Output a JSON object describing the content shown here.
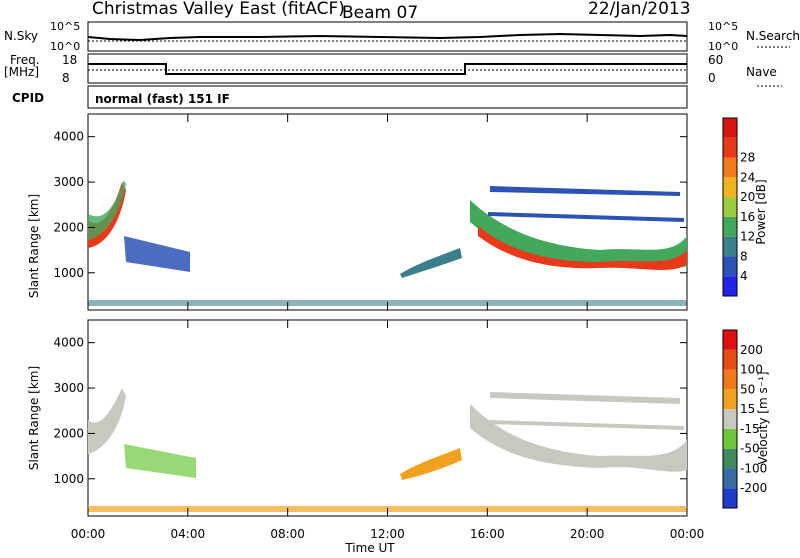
{
  "header": {
    "title": "Christmas Valley East (fitACF)",
    "beam": "Beam 07",
    "date": "22/Jan/2013"
  },
  "sky_panel": {
    "left_label": "N.Sky",
    "left_ticks": [
      "10^5",
      "10^0"
    ],
    "right_ticks": [
      "10^5",
      "10^0"
    ],
    "right_label": "N.Search"
  },
  "freq_panel": {
    "left_label_1": "Freq.",
    "left_label_2": "[MHz]",
    "left_ticks": [
      "18",
      "8"
    ],
    "right_ticks": [
      "60",
      "0"
    ],
    "right_label": "Nave"
  },
  "cpid_panel": {
    "label": "CPID",
    "text": "normal (fast) 151 IF"
  },
  "chart_data": [
    {
      "type": "heatmap",
      "name": "power",
      "ylabel": "Slant Range [km]",
      "ylim": [
        180,
        4500
      ],
      "yticks": [
        "1000",
        "2000",
        "3000",
        "4000"
      ],
      "xlim": [
        0,
        24
      ],
      "colorbar_label": "Power [dB]",
      "colorbar_ticks": [
        "4",
        "8",
        "12",
        "16",
        "20",
        "24",
        "28"
      ],
      "colors": [
        "#1f24e8",
        "#2b52b4",
        "#3a7f8a",
        "#44a85c",
        "#9acd3a",
        "#f0b21e",
        "#f47a1a",
        "#e83a1a",
        "#d8140e"
      ]
    },
    {
      "type": "heatmap",
      "name": "velocity",
      "ylabel": "Slant Range [km]",
      "ylim": [
        180,
        4500
      ],
      "yticks": [
        "1000",
        "2000",
        "3000",
        "4000"
      ],
      "xlim": [
        0,
        24
      ],
      "colorbar_label": "Velocity [m s⁻¹]",
      "colorbar_ticks": [
        "200",
        "100",
        "50",
        "15",
        "-15",
        "-50",
        "-100",
        "-200"
      ],
      "colors": [
        "#1e3cc8",
        "#3a6aa8",
        "#3f8a5a",
        "#6cc83a",
        "#c8c8c0",
        "#f0a21e",
        "#f07a1a",
        "#e84a14",
        "#e01010"
      ]
    }
  ],
  "x_axis": {
    "ticks": [
      "00:00",
      "04:00",
      "08:00",
      "12:00",
      "16:00",
      "20:00",
      "00:00"
    ],
    "label": "Time UT"
  }
}
